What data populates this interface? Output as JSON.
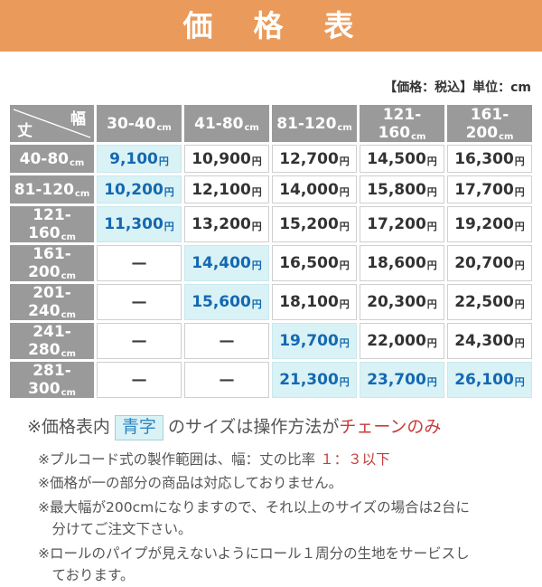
{
  "banner": {
    "title": "価　格　表"
  },
  "meta_note": "【価格：税込】単位：cm",
  "colors": {
    "banner_orange": "#EA9A5A",
    "header_gray": "#9A9A9A",
    "highlight_cyan": "#D8F2F6",
    "blue_text": "#1568B1",
    "red_text": "#C53D3D"
  },
  "table": {
    "corner": {
      "top_right_label": "幅",
      "bottom_left_label": "丈"
    },
    "unit_suffix": "cm",
    "price_suffix": "円",
    "dash": "—",
    "col_headers": [
      "30-40",
      "41-80",
      "81-120",
      "121-160",
      "161-200"
    ],
    "row_headers": [
      "40-80",
      "81-120",
      "121-160",
      "161-200",
      "201-240",
      "241-280",
      "281-300"
    ],
    "rows": [
      [
        {
          "v": "9,100",
          "hl": true
        },
        {
          "v": "10,900"
        },
        {
          "v": "12,700"
        },
        {
          "v": "14,500"
        },
        {
          "v": "16,300"
        }
      ],
      [
        {
          "v": "10,200",
          "hl": true
        },
        {
          "v": "12,100"
        },
        {
          "v": "14,000"
        },
        {
          "v": "15,800"
        },
        {
          "v": "17,700"
        }
      ],
      [
        {
          "v": "11,300",
          "hl": true
        },
        {
          "v": "13,200"
        },
        {
          "v": "15,200"
        },
        {
          "v": "17,200"
        },
        {
          "v": "19,200"
        }
      ],
      [
        {
          "dash": true
        },
        {
          "v": "14,400",
          "hl": true
        },
        {
          "v": "16,500"
        },
        {
          "v": "18,600"
        },
        {
          "v": "20,700"
        }
      ],
      [
        {
          "dash": true
        },
        {
          "v": "15,600",
          "hl": true
        },
        {
          "v": "18,100"
        },
        {
          "v": "20,300"
        },
        {
          "v": "22,500"
        }
      ],
      [
        {
          "dash": true
        },
        {
          "dash": true
        },
        {
          "v": "19,700",
          "hl": true
        },
        {
          "v": "22,000"
        },
        {
          "v": "24,300"
        }
      ],
      [
        {
          "dash": true
        },
        {
          "dash": true
        },
        {
          "v": "21,300",
          "hl": true
        },
        {
          "v": "23,700",
          "hl": true
        },
        {
          "v": "26,100",
          "hl": true
        }
      ]
    ]
  },
  "footnotes": [
    {
      "size": "large",
      "segments": [
        {
          "text": "※価格表内",
          "style": "normal"
        },
        {
          "text": "青字",
          "style": "blue-box"
        },
        {
          "text": "のサイズは操作方法が",
          "style": "normal"
        },
        {
          "text": "チェーンのみ",
          "style": "red"
        }
      ]
    },
    {
      "size": "small",
      "segments": [
        {
          "text": "※プルコード式の製作範囲は、幅：丈の比率 ",
          "style": "normal"
        },
        {
          "text": "１：３以下",
          "style": "red"
        }
      ]
    },
    {
      "size": "small",
      "segments": [
        {
          "text": "※価格が一の部分の商品は対応しておりません。",
          "style": "normal"
        }
      ]
    },
    {
      "size": "small",
      "segments": [
        {
          "text": "※最大幅が200cmになりますので、それ以上のサイズの場合は2台に",
          "style": "normal"
        },
        {
          "text": "分けてご注文下さい。",
          "style": "normal",
          "br": true
        }
      ]
    },
    {
      "size": "small",
      "segments": [
        {
          "text": "※ロールのパイプが見えないようにロール１周分の生地をサービスし",
          "style": "normal"
        },
        {
          "text": "ております。",
          "style": "normal",
          "br": true
        }
      ]
    }
  ]
}
